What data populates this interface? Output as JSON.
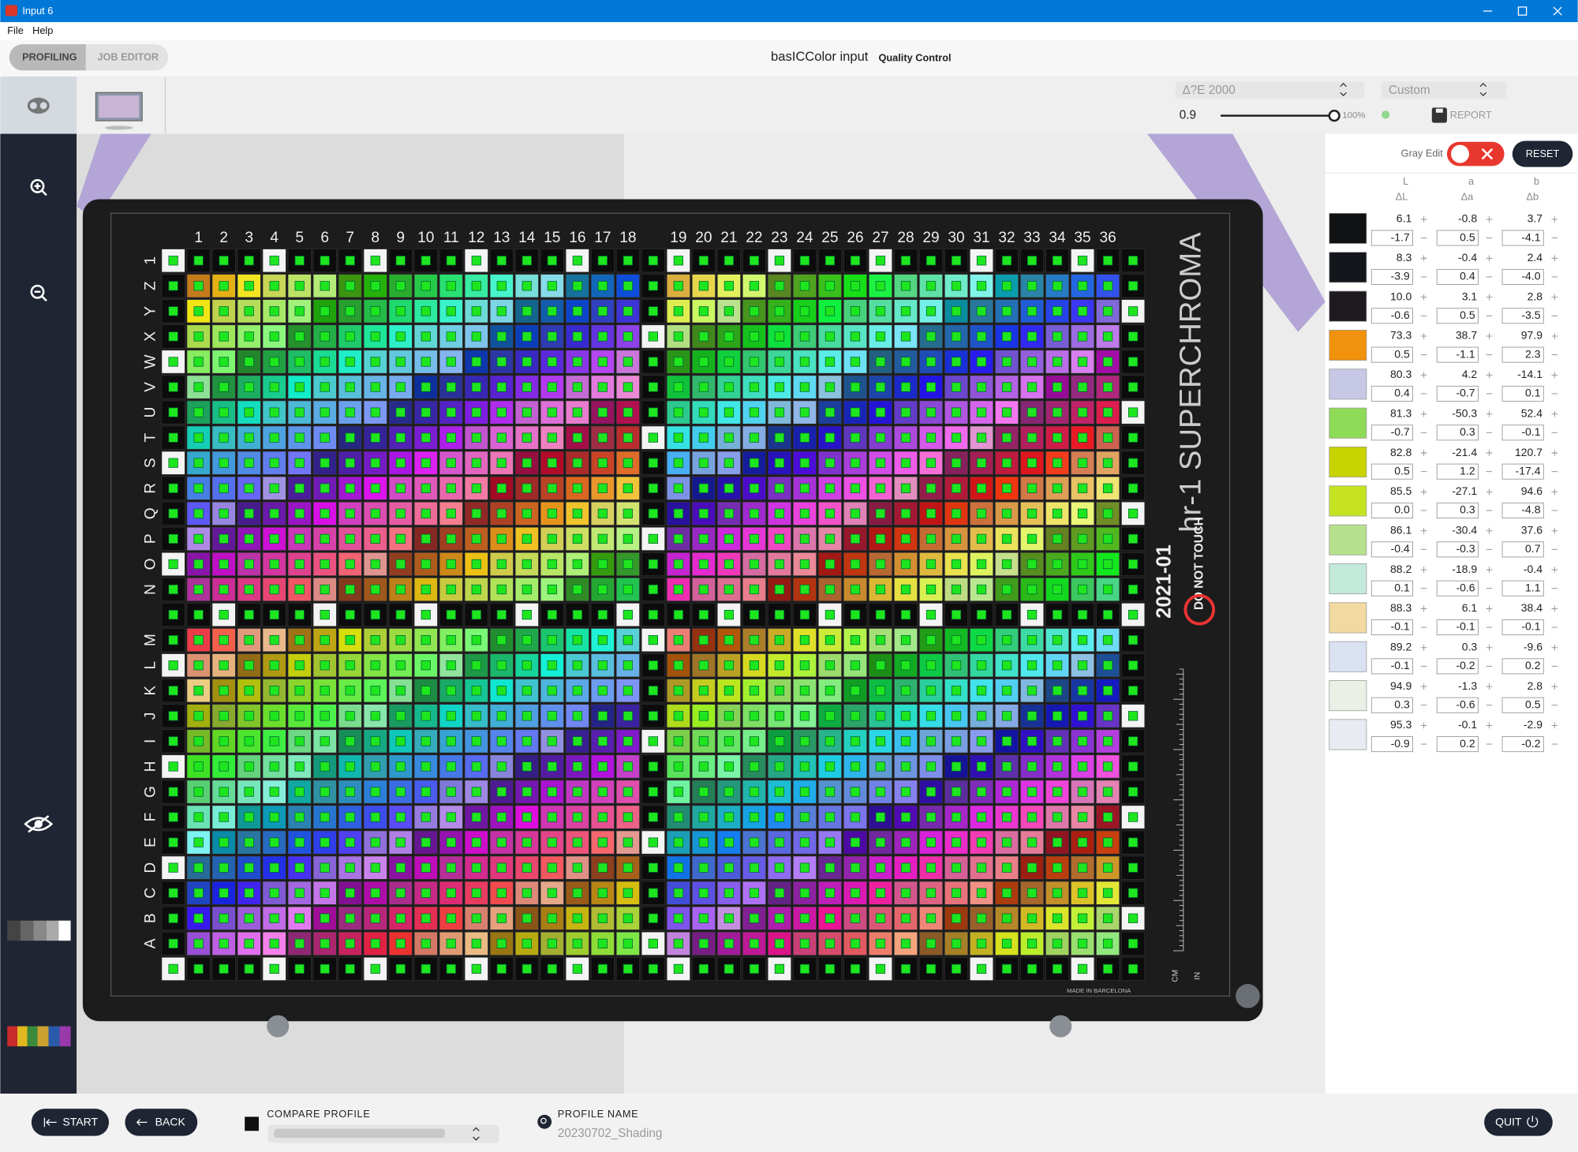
{
  "window": {
    "title": "Input 6"
  },
  "menu": [
    "File",
    "Help"
  ],
  "tabs": [
    "PROFILING",
    "JOB EDITOR"
  ],
  "header": {
    "app": "basICColor input",
    "mode": "Quality Control"
  },
  "toolbar": {
    "metric": "Δ?E 2000",
    "preset": "Custom",
    "threshold": "0.9",
    "opacity": "100%",
    "report": "REPORT"
  },
  "target": {
    "columns": [
      "1",
      "2",
      "3",
      "4",
      "5",
      "6",
      "7",
      "8",
      "9",
      "10",
      "11",
      "12",
      "13",
      "14",
      "15",
      "16",
      "17",
      "18",
      "19",
      "20",
      "21",
      "22",
      "23",
      "24",
      "25",
      "26",
      "27",
      "28",
      "29",
      "30",
      "31",
      "32",
      "33",
      "34",
      "35",
      "36"
    ],
    "rows": [
      "1",
      "Z",
      "Y",
      "X",
      "W",
      "V",
      "U",
      "T",
      "S",
      "R",
      "Q",
      "P",
      "O",
      "N",
      null,
      "M",
      "L",
      "K",
      "J",
      "I",
      "H",
      "G",
      "F",
      "E",
      "D",
      "C",
      "B",
      "A",
      null
    ],
    "brand": "hr-1 SUPERCHROMA",
    "date": "2021-01",
    "warning": "DO NOT TOUCH",
    "origin": "MADE IN BARCELONA",
    "units": [
      "CM",
      "IN"
    ]
  },
  "panel": {
    "gray_edit": "Gray Edit",
    "reset": "RESET",
    "headers": [
      "L",
      "a",
      "b"
    ],
    "delta_headers": [
      "ΔL",
      "Δa",
      "Δb"
    ],
    "rows": [
      {
        "color": "#111214",
        "lab": [
          "6.1",
          "-0.8",
          "3.7"
        ],
        "delta": [
          "-1.7",
          "0.5",
          "-4.1"
        ]
      },
      {
        "color": "#13161a",
        "lab": [
          "8.3",
          "-0.4",
          "2.4"
        ],
        "delta": [
          "-3.9",
          "0.4",
          "-4.0"
        ]
      },
      {
        "color": "#1f1a20",
        "lab": [
          "10.0",
          "3.1",
          "2.8"
        ],
        "delta": [
          "-0.6",
          "0.5",
          "-3.5"
        ]
      },
      {
        "color": "#f0920c",
        "lab": [
          "73.3",
          "38.7",
          "97.9"
        ],
        "delta": [
          "0.5",
          "-1.1",
          "2.3"
        ]
      },
      {
        "color": "#c7c8e6",
        "lab": [
          "80.3",
          "4.2",
          "-14.1"
        ],
        "delta": [
          "0.4",
          "-0.7",
          "0.1"
        ]
      },
      {
        "color": "#8edb58",
        "lab": [
          "81.3",
          "-50.3",
          "52.4"
        ],
        "delta": [
          "-0.7",
          "0.3",
          "-0.1"
        ]
      },
      {
        "color": "#c8d400",
        "lab": [
          "82.8",
          "-21.4",
          "120.7"
        ],
        "delta": [
          "0.5",
          "1.2",
          "-17.4"
        ]
      },
      {
        "color": "#c6e322",
        "lab": [
          "85.5",
          "-27.1",
          "94.6"
        ],
        "delta": [
          "0.0",
          "0.3",
          "-4.8"
        ]
      },
      {
        "color": "#b5e18e",
        "lab": [
          "86.1",
          "-30.4",
          "37.6"
        ],
        "delta": [
          "-0.4",
          "-0.3",
          "0.7"
        ]
      },
      {
        "color": "#c2e9d9",
        "lab": [
          "88.2",
          "-18.9",
          "-0.4"
        ],
        "delta": [
          "0.1",
          "-0.6",
          "1.1"
        ]
      },
      {
        "color": "#f2d9a1",
        "lab": [
          "88.3",
          "6.1",
          "38.4"
        ],
        "delta": [
          "-0.1",
          "-0.1",
          "-0.1"
        ]
      },
      {
        "color": "#d9e1f3",
        "lab": [
          "89.2",
          "0.3",
          "-9.6"
        ],
        "delta": [
          "-0.1",
          "-0.2",
          "0.2"
        ]
      },
      {
        "color": "#eaf0e6",
        "lab": [
          "94.9",
          "-1.3",
          "2.8"
        ],
        "delta": [
          "0.3",
          "-0.6",
          "0.5"
        ]
      },
      {
        "color": "#e8ecf2",
        "lab": [
          "95.3",
          "-0.1",
          "-2.9"
        ],
        "delta": [
          "-0.9",
          "0.2",
          "-0.2"
        ]
      }
    ]
  },
  "footer": {
    "start": "START",
    "back": "BACK",
    "compare": "COMPARE PROFILE",
    "profile_label": "PROFILE NAME",
    "profile_name": "20230702_Shading",
    "quit": "QUIT"
  }
}
